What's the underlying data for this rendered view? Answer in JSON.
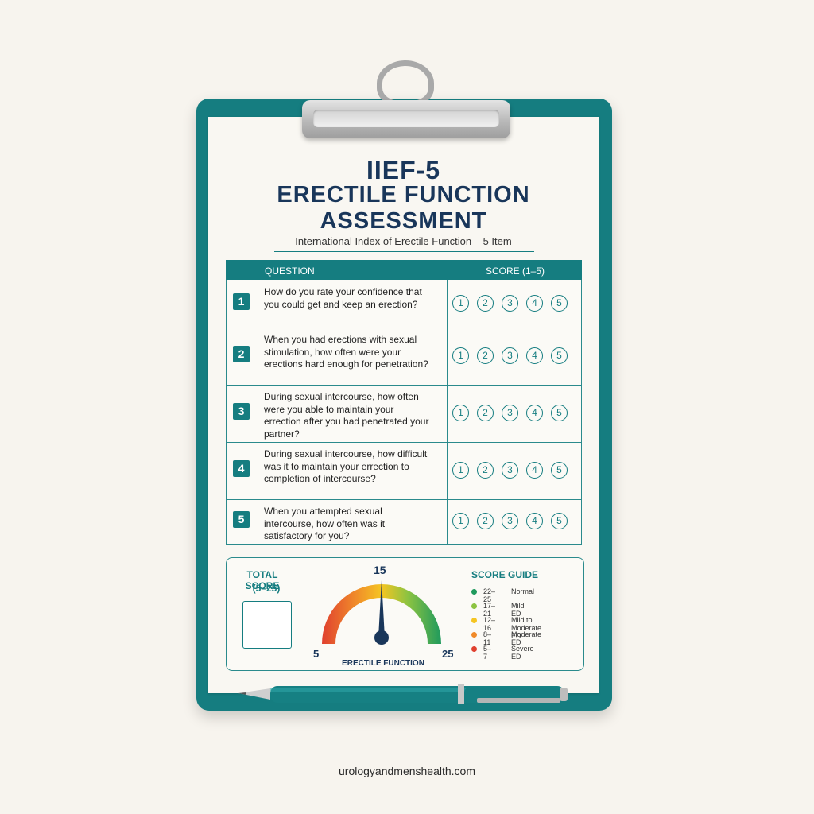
{
  "header": {
    "title_line1": "IIEF-5",
    "title_line2": "ERECTILE FUNCTION",
    "title_line3": "ASSESSMENT",
    "subtitle": "International Index of Erectile Function – 5 Item"
  },
  "table": {
    "col_question": "QUESTION",
    "col_score": "SCORE (1–5)",
    "score_options": [
      "1",
      "2",
      "3",
      "4",
      "5"
    ],
    "questions": [
      {
        "num": "1",
        "text": "How do you rate your confidence that you could get and keep an erection?"
      },
      {
        "num": "2",
        "text": "When you had erections with sexual stimulation, how often were your erections hard enough for penetration?"
      },
      {
        "num": "3",
        "text": "During sexual intercourse, how often were you able to maintain your errection after you had penetrated your partner?"
      },
      {
        "num": "4",
        "text": "During sexual intercourse, how difficult was it to maintain your errection to completion of intercourse?"
      },
      {
        "num": "5",
        "text": "When you attempted sexual intercourse, how often was it satisfactory for you?"
      }
    ]
  },
  "total": {
    "label": "TOTAL SCORE",
    "range": "(5–25)"
  },
  "gauge": {
    "min_label": "5",
    "mid_label": "15",
    "max_label": "25",
    "caption": "ERECTILE FUNCTION",
    "needle_value": 15,
    "colors": [
      "#e0402f",
      "#f08a2a",
      "#f5c522",
      "#8cc341",
      "#1f9a5d"
    ]
  },
  "guide": {
    "title": "SCORE GUIDE",
    "items": [
      {
        "range": "22–25",
        "label": "Normal",
        "color": "#1f9a5d"
      },
      {
        "range": "17–21",
        "label": "Mild ED",
        "color": "#8cc341"
      },
      {
        "range": "12–16",
        "label": "Mild to Moderate ED",
        "color": "#f5c522"
      },
      {
        "range": "8–11",
        "label": "Moderate ED",
        "color": "#f08a2a"
      },
      {
        "range": "5–7",
        "label": "Severe ED",
        "color": "#e0402f"
      }
    ]
  },
  "footer": {
    "site": "urologyandmenshealth.com"
  }
}
